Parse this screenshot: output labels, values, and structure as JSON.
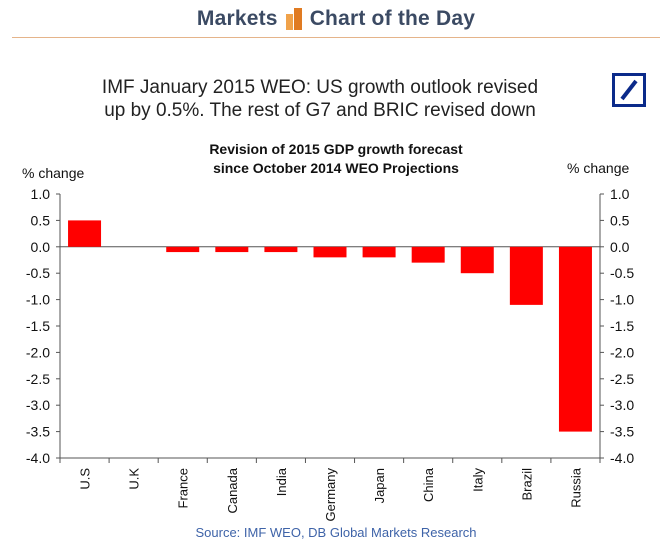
{
  "header": {
    "left_word": "Markets",
    "right_word": "Chart of the Day"
  },
  "headline": {
    "line1": "IMF January 2015 WEO: US growth outlook revised",
    "line2": "up by 0.5%. The rest of G7 and BRIC revised down"
  },
  "logo": {
    "name": "deutsche-bank-logo"
  },
  "source": "Source: IMF WEO, DB Global Markets Research",
  "chart_data": {
    "type": "bar",
    "title": "Revision of 2015 GDP growth forecast",
    "subtitle": "since October 2014 WEO Projections",
    "ylabel_left": "% change",
    "ylabel_right": "% change",
    "ylim": [
      -4.0,
      1.0
    ],
    "yticks": [
      "1.0",
      "0.5",
      "0.0",
      "-0.5",
      "-1.0",
      "-1.5",
      "-2.0",
      "-2.5",
      "-3.0",
      "-3.5",
      "-4.0"
    ],
    "ytick_values": [
      1.0,
      0.5,
      0.0,
      -0.5,
      -1.0,
      -1.5,
      -2.0,
      -2.5,
      -3.0,
      -3.5,
      -4.0
    ],
    "categories": [
      "U.S",
      "U.K",
      "France",
      "Canada",
      "India",
      "Germany",
      "Japan",
      "China",
      "Italy",
      "Brazil",
      "Russia"
    ],
    "values": [
      0.5,
      0.0,
      -0.1,
      -0.1,
      -0.1,
      -0.2,
      -0.2,
      -0.3,
      -0.5,
      -1.1,
      -3.5
    ],
    "bar_color": "#ff0000",
    "grid": false,
    "legend": "none"
  }
}
